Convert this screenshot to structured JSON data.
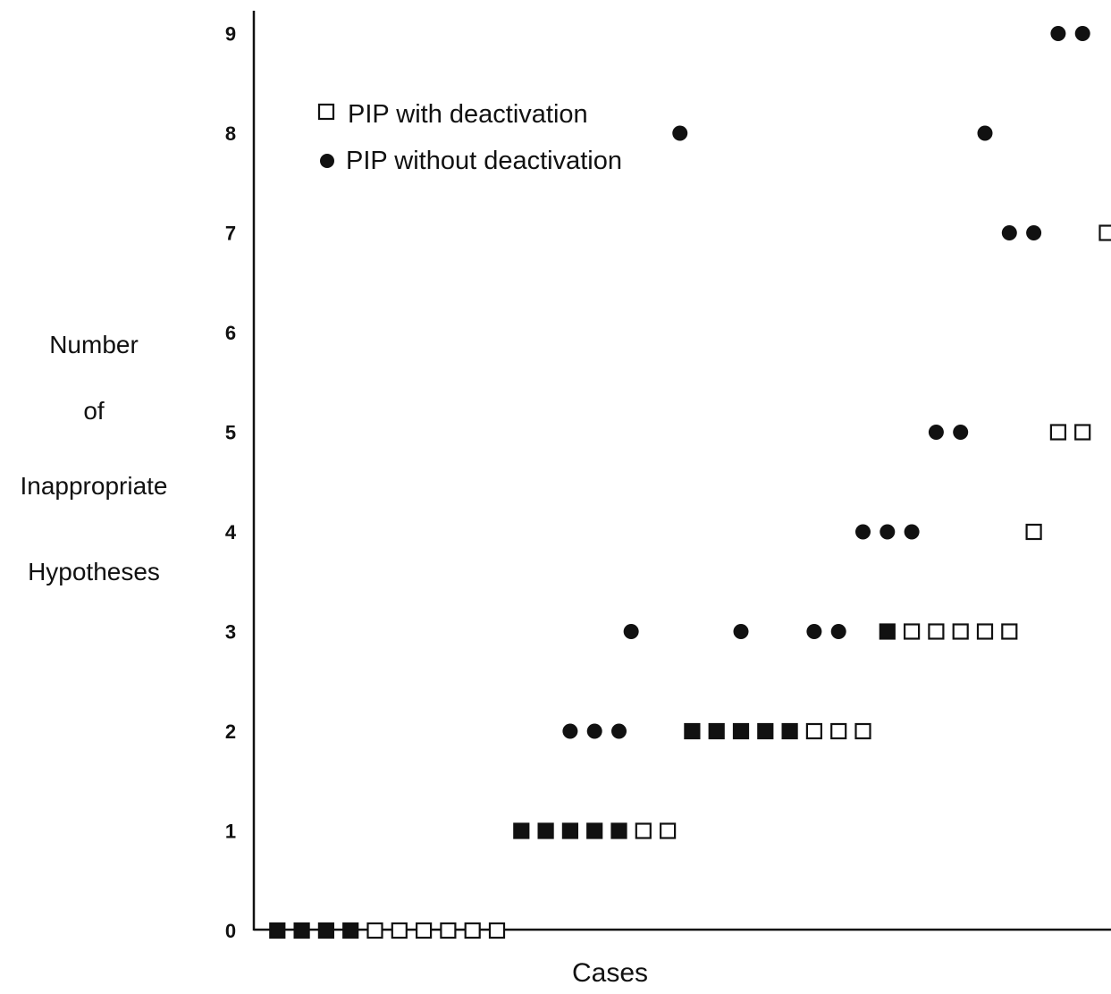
{
  "chart_data": {
    "type": "scatter",
    "xlabel": "Cases",
    "ylabel": [
      "Number",
      "of",
      "Inappropriate",
      "Hypotheses"
    ],
    "ylim": [
      0,
      9
    ],
    "yticks": [
      0,
      1,
      2,
      3,
      4,
      5,
      6,
      7,
      8,
      9
    ],
    "grid": false,
    "legend_placement": "top-left",
    "legend": [
      {
        "marker": "open-square",
        "label": "PIP with deactivation"
      },
      {
        "marker": "filled-circle",
        "label": "PIP without deactivation"
      }
    ],
    "series": [
      {
        "name": "PIP with deactivation",
        "marker": "open-square",
        "points": [
          [
            5,
            0
          ],
          [
            6,
            0
          ],
          [
            7,
            0
          ],
          [
            8,
            0
          ],
          [
            9,
            0
          ],
          [
            10,
            0
          ],
          [
            16,
            1
          ],
          [
            17,
            1
          ],
          [
            23,
            2
          ],
          [
            24,
            2
          ],
          [
            25,
            2
          ],
          [
            27,
            3
          ],
          [
            28,
            3
          ],
          [
            29,
            3
          ],
          [
            30,
            3
          ],
          [
            31,
            3
          ],
          [
            32,
            4
          ],
          [
            33,
            5
          ],
          [
            34,
            5
          ],
          [
            35,
            7
          ]
        ]
      },
      {
        "name": "PIP without deactivation",
        "marker": "filled-circle",
        "points": [
          [
            11,
            1
          ],
          [
            12,
            1
          ],
          [
            13,
            2
          ],
          [
            14,
            2
          ],
          [
            15,
            2
          ],
          [
            15.5,
            3
          ],
          [
            17.5,
            8
          ],
          [
            20,
            3
          ],
          [
            23,
            3
          ],
          [
            24,
            3
          ],
          [
            25,
            4
          ],
          [
            26,
            4
          ],
          [
            27,
            4
          ],
          [
            28,
            5
          ],
          [
            29,
            5
          ],
          [
            30,
            8
          ],
          [
            31,
            7
          ],
          [
            32,
            7
          ],
          [
            33,
            9
          ],
          [
            34,
            9
          ]
        ]
      },
      {
        "name": "",
        "marker": "filled-square",
        "points": [
          [
            1,
            0
          ],
          [
            2,
            0
          ],
          [
            3,
            0
          ],
          [
            4,
            0
          ],
          [
            11,
            1
          ],
          [
            12,
            1
          ],
          [
            13,
            1
          ],
          [
            14,
            1
          ],
          [
            15,
            1
          ],
          [
            18,
            2
          ],
          [
            19,
            2
          ],
          [
            20,
            2
          ],
          [
            21,
            2
          ],
          [
            22,
            2
          ],
          [
            26,
            3
          ]
        ]
      }
    ],
    "colors": {
      "ink": "#111111",
      "background": "#ffffff"
    }
  }
}
